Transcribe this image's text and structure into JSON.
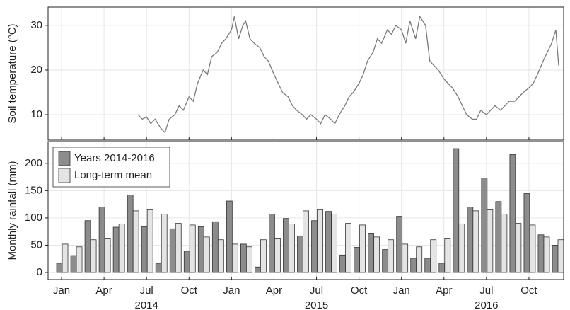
{
  "chart_data": [
    {
      "type": "line",
      "ylabel": "Soil temperature (°C)",
      "xlim": [
        -0.95,
        35.45
      ],
      "ylim": [
        4.3,
        34.1
      ],
      "yticks": [
        10,
        20,
        30
      ],
      "grid": true,
      "x": [
        5.4,
        5.7,
        6.0,
        6.3,
        6.6,
        7.0,
        7.3,
        7.6,
        8.0,
        8.3,
        8.6,
        9.0,
        9.3,
        9.6,
        10.0,
        10.3,
        10.6,
        11.0,
        11.3,
        11.6,
        12.0,
        12.2,
        12.5,
        12.8,
        13.0,
        13.3,
        13.6,
        14.0,
        14.3,
        14.6,
        15.0,
        15.3,
        15.6,
        16.0,
        16.3,
        16.6,
        17.0,
        17.3,
        17.6,
        18.0,
        18.3,
        18.6,
        19.0,
        19.3,
        19.6,
        20.0,
        20.3,
        20.6,
        21.0,
        21.3,
        21.6,
        22.0,
        22.3,
        22.6,
        23.0,
        23.3,
        23.6,
        24.0,
        24.3,
        24.6,
        25.0,
        25.3,
        25.5,
        25.7,
        26.0,
        26.3,
        26.6,
        27.0,
        27.3,
        27.6,
        28.0,
        28.3,
        28.6,
        29.0,
        29.3,
        29.6,
        30.0,
        30.3,
        30.6,
        31.0,
        31.3,
        31.6,
        32.0,
        32.3,
        32.6,
        33.0,
        33.3,
        33.6,
        34.0,
        34.3,
        34.6,
        34.9,
        35.1
      ],
      "series": [
        {
          "color": "#7a7a7a",
          "values": [
            10,
            9,
            9.5,
            8,
            9,
            7,
            6,
            9,
            10,
            12,
            11,
            14,
            13,
            17,
            20,
            19,
            23,
            24,
            26,
            27,
            29,
            32,
            27,
            30,
            31,
            27,
            26,
            25,
            23,
            22,
            19,
            17,
            15,
            14,
            12,
            11,
            10,
            9,
            10,
            9,
            8,
            10,
            9,
            8,
            10,
            12,
            14,
            15,
            17,
            19,
            22,
            24,
            27,
            26,
            29,
            28,
            30,
            29,
            26,
            31,
            27,
            32,
            31,
            30,
            22,
            21,
            20,
            18,
            17,
            16,
            14,
            12,
            10,
            9,
            9,
            11,
            10,
            11,
            12,
            11,
            12,
            13,
            13,
            14,
            15,
            16,
            17,
            19,
            22,
            24,
            26,
            29,
            21
          ]
        }
      ]
    },
    {
      "type": "bar",
      "ylabel": "Monthly rainfall (mm)",
      "xlim": [
        -0.95,
        35.45
      ],
      "ylim": [
        -13,
        240
      ],
      "yticks": [
        0,
        50,
        100,
        150,
        200
      ],
      "grid": true,
      "legend": "upper left",
      "xticks": [
        {
          "value": 0,
          "label": "Jan"
        },
        {
          "value": 3,
          "label": "Apr"
        },
        {
          "value": 6,
          "label": "Jul"
        },
        {
          "value": 9,
          "label": "Oct"
        },
        {
          "value": 12,
          "label": "Jan"
        },
        {
          "value": 15,
          "label": "Apr"
        },
        {
          "value": 18,
          "label": "Jul"
        },
        {
          "value": 21,
          "label": "Oct"
        },
        {
          "value": 24,
          "label": "Jan"
        },
        {
          "value": 27,
          "label": "Apr"
        },
        {
          "value": 30,
          "label": "Jul"
        },
        {
          "value": 33,
          "label": "Oct"
        }
      ],
      "year_labels": [
        {
          "value": 6,
          "label": "2014"
        },
        {
          "value": 18,
          "label": "2015"
        },
        {
          "value": 30,
          "label": "2016"
        }
      ],
      "x": [
        0,
        1,
        2,
        3,
        4,
        5,
        6,
        7,
        8,
        9,
        10,
        11,
        12,
        13,
        14,
        15,
        16,
        17,
        18,
        19,
        20,
        21,
        22,
        23,
        24,
        25,
        26,
        27,
        28,
        29,
        30,
        31,
        32,
        33,
        34,
        35
      ],
      "series": [
        {
          "name": "Years 2014-2016",
          "color": "#8c8c8c",
          "values": [
            17,
            31,
            95,
            120,
            83,
            142,
            84,
            16,
            80,
            39,
            84,
            93,
            131,
            52,
            10,
            107,
            99,
            67,
            95,
            112,
            32,
            46,
            72,
            42,
            103,
            26,
            26,
            17,
            227,
            120,
            173,
            130,
            216,
            145,
            69,
            50
          ]
        },
        {
          "name": "Long-term mean",
          "color": "#e4e4e4",
          "values": [
            52,
            47,
            60,
            63,
            89,
            113,
            115,
            107,
            90,
            87,
            65,
            60,
            52,
            47,
            60,
            63,
            89,
            113,
            115,
            107,
            90,
            87,
            65,
            60,
            52,
            47,
            60,
            63,
            89,
            113,
            115,
            107,
            90,
            87,
            65,
            60
          ]
        }
      ]
    }
  ]
}
